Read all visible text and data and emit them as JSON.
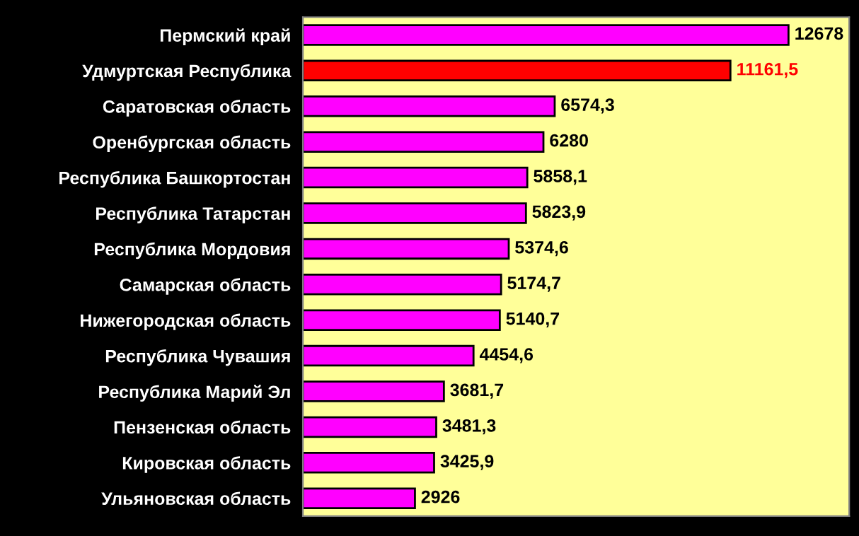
{
  "chart_data": {
    "type": "bar",
    "orientation": "horizontal",
    "categories": [
      "Пермский край",
      "Удмуртская Республика",
      "Саратовская область",
      "Оренбургская область",
      "Республика Башкортостан",
      "Республика Татарстан",
      "Республика Мордовия",
      "Самарская область",
      "Нижегородская область",
      "Республика Чувашия",
      "Республика Марий Эл",
      "Пензенская область",
      "Кировская область",
      "Ульяновская область"
    ],
    "values": [
      12678,
      11161.5,
      6574.3,
      6280,
      5858.1,
      5823.9,
      5374.6,
      5174.7,
      5140.7,
      4454.6,
      3681.7,
      3481.3,
      3425.9,
      2926
    ],
    "color": "#ff00ff",
    "colors": [
      "#ff00ff",
      "#ff0000",
      "#ff00ff",
      "#ff00ff",
      "#ff00ff",
      "#ff00ff",
      "#ff00ff",
      "#ff00ff",
      "#ff00ff",
      "#ff00ff",
      "#ff00ff",
      "#ff00ff",
      "#ff00ff",
      "#ff00ff"
    ],
    "value_labels": [
      "12678",
      "11161,5",
      "6574,3",
      "6280",
      "5858,1",
      "5823,9",
      "5374,6",
      "5174,7",
      "5140,7",
      "4454,6",
      "3681,7",
      "3481,3",
      "3425,9",
      "2926"
    ],
    "grid": false,
    "legend": false
  }
}
